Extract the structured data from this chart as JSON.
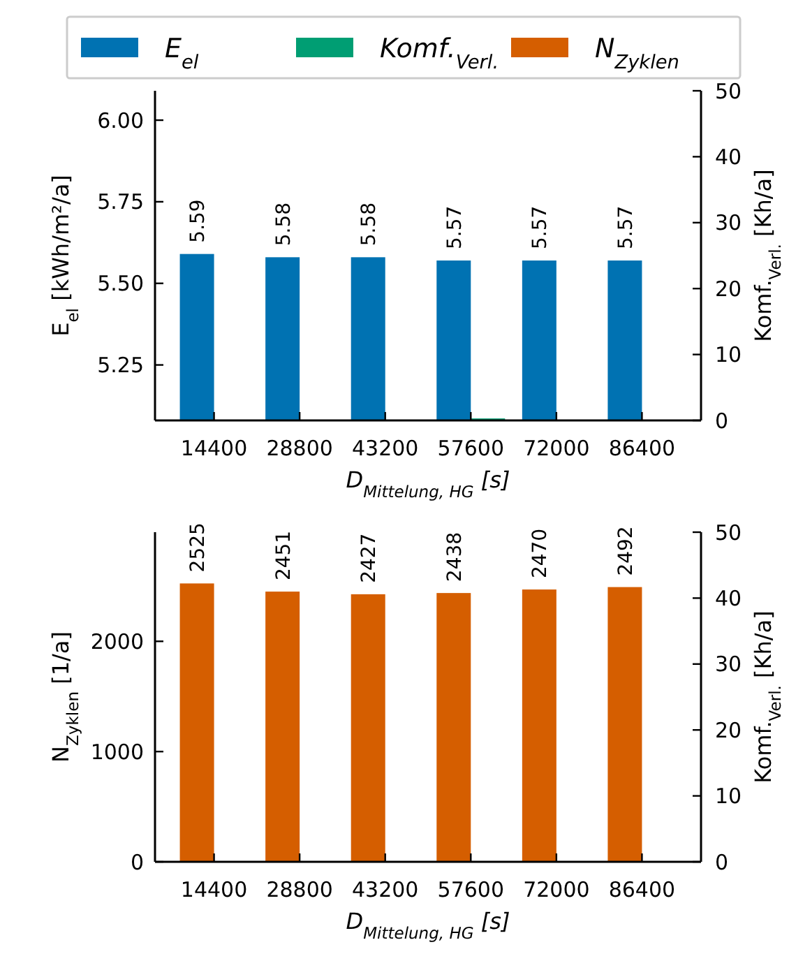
{
  "chart_data": [
    {
      "type": "bar",
      "categories": [
        "14400",
        "28800",
        "43200",
        "57600",
        "72000",
        "86400"
      ],
      "xlabel": "D$_{Mittelung, HG}$ [s]",
      "ylabel": "E$_{el}$ [kWh/m²/a]",
      "y2label": "Komf.$_{Verl.}$ [Kh/a]",
      "ylim": [
        5.08,
        6.09
      ],
      "yticks": [
        "5.25",
        "5.50",
        "5.75",
        "6.00"
      ],
      "y2lim": [
        0,
        50
      ],
      "y2ticks": [
        0,
        10,
        20,
        30,
        40,
        50
      ],
      "legend": "top",
      "series": [
        {
          "name": "E$_{el}$",
          "color": "#0072b2",
          "values": [
            5.59,
            5.58,
            5.58,
            5.57,
            5.57,
            5.57
          ],
          "value_labels": [
            "5.59",
            "5.58",
            "5.58",
            "5.57",
            "5.57",
            "5.57"
          ]
        },
        {
          "name": "Komf.$_{Verl.}$",
          "color": "#009e73",
          "axis": "y2",
          "values": [
            0,
            0,
            0,
            0.3,
            0,
            0
          ]
        }
      ]
    },
    {
      "type": "bar",
      "categories": [
        "14400",
        "28800",
        "43200",
        "57600",
        "72000",
        "86400"
      ],
      "xlabel": "D$_{Mittelung, HG}$ [s]",
      "ylabel": "N$_{Zyklen}$ [1/a]",
      "y2label": "Komf.$_{Verl.}$ [Kh/a]",
      "ylim": [
        0,
        2990
      ],
      "yticks": [
        0,
        1000,
        2000
      ],
      "y2lim": [
        0,
        50
      ],
      "y2ticks": [
        0,
        10,
        20,
        30,
        40,
        50
      ],
      "series": [
        {
          "name": "N$_{Zyklen}$",
          "color": "#d55e00",
          "values": [
            2525,
            2451,
            2427,
            2438,
            2470,
            2492
          ],
          "value_labels": [
            "2525",
            "2451",
            "2427",
            "2438",
            "2470",
            "2492"
          ]
        },
        {
          "color": "#009e73",
          "axis": "y2",
          "values": [
            0,
            0,
            0,
            0,
            0,
            0
          ]
        }
      ]
    }
  ]
}
